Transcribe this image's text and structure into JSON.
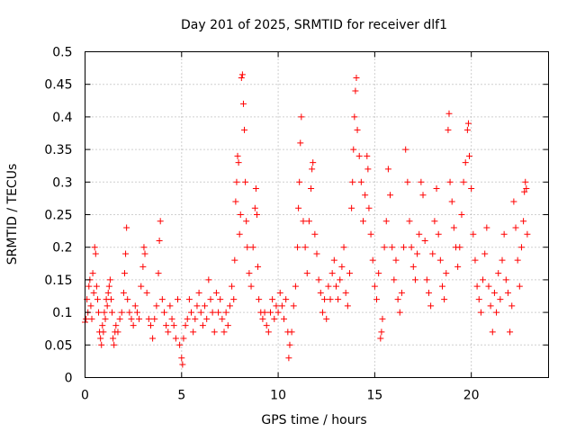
{
  "chart_data": {
    "type": "scatter",
    "title": "Day 201 of 2025, SRMTID for receiver dlf1",
    "xlabel": "GPS time / hours",
    "ylabel": "SRMTID / TECUs",
    "xlim": [
      0,
      24
    ],
    "ylim": [
      0,
      0.5
    ],
    "xticks": [
      0,
      5,
      10,
      15,
      20
    ],
    "yticks": [
      0,
      0.05,
      0.1,
      0.15,
      0.2,
      0.25,
      0.3,
      0.35,
      0.4,
      0.45,
      0.5
    ],
    "ytick_labels": [
      "0",
      "0.05",
      "0.1",
      "0.15",
      "0.2",
      "0.25",
      "0.3",
      "0.35",
      "0.4",
      "0.45",
      "0.5"
    ],
    "xtick_labels": [
      "0",
      "5",
      "10",
      "15",
      "20"
    ],
    "grid": true,
    "marker": "+",
    "color": "#ff0000",
    "series": [
      {
        "name": "SRMTID",
        "points": [
          [
            0.0,
            0.085
          ],
          [
            0.05,
            0.09
          ],
          [
            0.1,
            0.12
          ],
          [
            0.15,
            0.1
          ],
          [
            0.2,
            0.14
          ],
          [
            0.25,
            0.15
          ],
          [
            0.3,
            0.11
          ],
          [
            0.35,
            0.09
          ],
          [
            0.4,
            0.16
          ],
          [
            0.45,
            0.13
          ],
          [
            0.5,
            0.2
          ],
          [
            0.55,
            0.19
          ],
          [
            0.6,
            0.14
          ],
          [
            0.65,
            0.12
          ],
          [
            0.7,
            0.1
          ],
          [
            0.75,
            0.07
          ],
          [
            0.8,
            0.06
          ],
          [
            0.85,
            0.05
          ],
          [
            0.9,
            0.08
          ],
          [
            0.95,
            0.07
          ],
          [
            1.0,
            0.1
          ],
          [
            1.05,
            0.09
          ],
          [
            1.1,
            0.12
          ],
          [
            1.15,
            0.11
          ],
          [
            1.2,
            0.13
          ],
          [
            1.25,
            0.14
          ],
          [
            1.3,
            0.15
          ],
          [
            1.35,
            0.12
          ],
          [
            1.4,
            0.1
          ],
          [
            1.45,
            0.06
          ],
          [
            1.5,
            0.05
          ],
          [
            1.55,
            0.07
          ],
          [
            1.6,
            0.08
          ],
          [
            1.7,
            0.07
          ],
          [
            1.8,
            0.09
          ],
          [
            1.9,
            0.1
          ],
          [
            2.0,
            0.13
          ],
          [
            2.05,
            0.16
          ],
          [
            2.1,
            0.19
          ],
          [
            2.15,
            0.23
          ],
          [
            2.2,
            0.12
          ],
          [
            2.3,
            0.1
          ],
          [
            2.4,
            0.09
          ],
          [
            2.5,
            0.08
          ],
          [
            2.6,
            0.11
          ],
          [
            2.7,
            0.1
          ],
          [
            2.8,
            0.09
          ],
          [
            2.9,
            0.14
          ],
          [
            3.0,
            0.17
          ],
          [
            3.05,
            0.2
          ],
          [
            3.1,
            0.19
          ],
          [
            3.2,
            0.13
          ],
          [
            3.3,
            0.09
          ],
          [
            3.4,
            0.08
          ],
          [
            3.5,
            0.06
          ],
          [
            3.6,
            0.09
          ],
          [
            3.7,
            0.11
          ],
          [
            3.8,
            0.16
          ],
          [
            3.85,
            0.21
          ],
          [
            3.9,
            0.24
          ],
          [
            4.0,
            0.12
          ],
          [
            4.1,
            0.1
          ],
          [
            4.2,
            0.08
          ],
          [
            4.3,
            0.07
          ],
          [
            4.4,
            0.11
          ],
          [
            4.5,
            0.09
          ],
          [
            4.6,
            0.08
          ],
          [
            4.7,
            0.06
          ],
          [
            4.8,
            0.12
          ],
          [
            4.9,
            0.05
          ],
          [
            5.0,
            0.03
          ],
          [
            5.05,
            0.02
          ],
          [
            5.1,
            0.06
          ],
          [
            5.2,
            0.08
          ],
          [
            5.3,
            0.09
          ],
          [
            5.4,
            0.12
          ],
          [
            5.5,
            0.1
          ],
          [
            5.6,
            0.07
          ],
          [
            5.7,
            0.09
          ],
          [
            5.8,
            0.11
          ],
          [
            5.9,
            0.13
          ],
          [
            6.0,
            0.1
          ],
          [
            6.1,
            0.08
          ],
          [
            6.2,
            0.11
          ],
          [
            6.3,
            0.09
          ],
          [
            6.4,
            0.15
          ],
          [
            6.5,
            0.12
          ],
          [
            6.6,
            0.1
          ],
          [
            6.7,
            0.07
          ],
          [
            6.8,
            0.13
          ],
          [
            6.9,
            0.1
          ],
          [
            7.0,
            0.12
          ],
          [
            7.1,
            0.09
          ],
          [
            7.2,
            0.07
          ],
          [
            7.3,
            0.1
          ],
          [
            7.4,
            0.08
          ],
          [
            7.5,
            0.11
          ],
          [
            7.6,
            0.14
          ],
          [
            7.7,
            0.12
          ],
          [
            7.75,
            0.18
          ],
          [
            7.8,
            0.27
          ],
          [
            7.85,
            0.3
          ],
          [
            7.9,
            0.34
          ],
          [
            7.95,
            0.33
          ],
          [
            8.0,
            0.22
          ],
          [
            8.05,
            0.25
          ],
          [
            8.1,
            0.46
          ],
          [
            8.15,
            0.465
          ],
          [
            8.2,
            0.42
          ],
          [
            8.25,
            0.38
          ],
          [
            8.3,
            0.3
          ],
          [
            8.35,
            0.24
          ],
          [
            8.4,
            0.2
          ],
          [
            8.5,
            0.16
          ],
          [
            8.6,
            0.14
          ],
          [
            8.7,
            0.2
          ],
          [
            8.8,
            0.26
          ],
          [
            8.85,
            0.29
          ],
          [
            8.9,
            0.25
          ],
          [
            8.95,
            0.17
          ],
          [
            9.0,
            0.12
          ],
          [
            9.1,
            0.1
          ],
          [
            9.2,
            0.09
          ],
          [
            9.3,
            0.1
          ],
          [
            9.4,
            0.08
          ],
          [
            9.5,
            0.07
          ],
          [
            9.6,
            0.1
          ],
          [
            9.7,
            0.12
          ],
          [
            9.8,
            0.09
          ],
          [
            9.9,
            0.11
          ],
          [
            10.0,
            0.1
          ],
          [
            10.1,
            0.13
          ],
          [
            10.2,
            0.11
          ],
          [
            10.3,
            0.09
          ],
          [
            10.4,
            0.12
          ],
          [
            10.5,
            0.07
          ],
          [
            10.55,
            0.03
          ],
          [
            10.6,
            0.05
          ],
          [
            10.7,
            0.07
          ],
          [
            10.8,
            0.11
          ],
          [
            10.9,
            0.14
          ],
          [
            11.0,
            0.2
          ],
          [
            11.05,
            0.26
          ],
          [
            11.1,
            0.3
          ],
          [
            11.15,
            0.36
          ],
          [
            11.2,
            0.4
          ],
          [
            11.3,
            0.24
          ],
          [
            11.4,
            0.2
          ],
          [
            11.5,
            0.16
          ],
          [
            11.6,
            0.24
          ],
          [
            11.7,
            0.29
          ],
          [
            11.75,
            0.32
          ],
          [
            11.8,
            0.33
          ],
          [
            11.9,
            0.22
          ],
          [
            12.0,
            0.19
          ],
          [
            12.1,
            0.15
          ],
          [
            12.2,
            0.13
          ],
          [
            12.3,
            0.1
          ],
          [
            12.4,
            0.12
          ],
          [
            12.5,
            0.09
          ],
          [
            12.6,
            0.14
          ],
          [
            12.7,
            0.12
          ],
          [
            12.8,
            0.16
          ],
          [
            12.9,
            0.18
          ],
          [
            13.0,
            0.14
          ],
          [
            13.1,
            0.12
          ],
          [
            13.2,
            0.15
          ],
          [
            13.3,
            0.17
          ],
          [
            13.4,
            0.2
          ],
          [
            13.5,
            0.13
          ],
          [
            13.6,
            0.11
          ],
          [
            13.7,
            0.16
          ],
          [
            13.8,
            0.26
          ],
          [
            13.85,
            0.3
          ],
          [
            13.9,
            0.35
          ],
          [
            13.95,
            0.4
          ],
          [
            14.0,
            0.44
          ],
          [
            14.05,
            0.46
          ],
          [
            14.1,
            0.38
          ],
          [
            14.2,
            0.34
          ],
          [
            14.3,
            0.3
          ],
          [
            14.4,
            0.24
          ],
          [
            14.5,
            0.28
          ],
          [
            14.6,
            0.34
          ],
          [
            14.65,
            0.32
          ],
          [
            14.7,
            0.26
          ],
          [
            14.8,
            0.22
          ],
          [
            14.9,
            0.18
          ],
          [
            15.0,
            0.14
          ],
          [
            15.1,
            0.12
          ],
          [
            15.2,
            0.16
          ],
          [
            15.3,
            0.06
          ],
          [
            15.35,
            0.07
          ],
          [
            15.4,
            0.09
          ],
          [
            15.5,
            0.2
          ],
          [
            15.6,
            0.24
          ],
          [
            15.7,
            0.32
          ],
          [
            15.8,
            0.28
          ],
          [
            15.9,
            0.2
          ],
          [
            16.0,
            0.15
          ],
          [
            16.1,
            0.18
          ],
          [
            16.2,
            0.12
          ],
          [
            16.3,
            0.1
          ],
          [
            16.4,
            0.13
          ],
          [
            16.5,
            0.2
          ],
          [
            16.6,
            0.35
          ],
          [
            16.7,
            0.3
          ],
          [
            16.8,
            0.24
          ],
          [
            16.9,
            0.2
          ],
          [
            17.0,
            0.17
          ],
          [
            17.1,
            0.15
          ],
          [
            17.2,
            0.19
          ],
          [
            17.3,
            0.22
          ],
          [
            17.4,
            0.3
          ],
          [
            17.5,
            0.28
          ],
          [
            17.6,
            0.21
          ],
          [
            17.7,
            0.15
          ],
          [
            17.8,
            0.13
          ],
          [
            17.9,
            0.11
          ],
          [
            18.0,
            0.19
          ],
          [
            18.1,
            0.24
          ],
          [
            18.2,
            0.29
          ],
          [
            18.3,
            0.22
          ],
          [
            18.4,
            0.18
          ],
          [
            18.5,
            0.14
          ],
          [
            18.6,
            0.12
          ],
          [
            18.7,
            0.16
          ],
          [
            18.8,
            0.38
          ],
          [
            18.85,
            0.405
          ],
          [
            18.9,
            0.3
          ],
          [
            19.0,
            0.27
          ],
          [
            19.1,
            0.23
          ],
          [
            19.2,
            0.2
          ],
          [
            19.3,
            0.17
          ],
          [
            19.4,
            0.2
          ],
          [
            19.5,
            0.25
          ],
          [
            19.6,
            0.3
          ],
          [
            19.7,
            0.33
          ],
          [
            19.8,
            0.38
          ],
          [
            19.85,
            0.39
          ],
          [
            19.9,
            0.34
          ],
          [
            20.0,
            0.29
          ],
          [
            20.1,
            0.22
          ],
          [
            20.2,
            0.18
          ],
          [
            20.3,
            0.14
          ],
          [
            20.4,
            0.12
          ],
          [
            20.5,
            0.1
          ],
          [
            20.6,
            0.15
          ],
          [
            20.7,
            0.19
          ],
          [
            20.8,
            0.23
          ],
          [
            20.9,
            0.14
          ],
          [
            21.0,
            0.11
          ],
          [
            21.1,
            0.07
          ],
          [
            21.2,
            0.13
          ],
          [
            21.3,
            0.1
          ],
          [
            21.4,
            0.16
          ],
          [
            21.5,
            0.12
          ],
          [
            21.6,
            0.18
          ],
          [
            21.7,
            0.22
          ],
          [
            21.8,
            0.15
          ],
          [
            21.9,
            0.13
          ],
          [
            22.0,
            0.07
          ],
          [
            22.1,
            0.11
          ],
          [
            22.2,
            0.27
          ],
          [
            22.3,
            0.23
          ],
          [
            22.4,
            0.18
          ],
          [
            22.5,
            0.14
          ],
          [
            22.6,
            0.2
          ],
          [
            22.7,
            0.24
          ],
          [
            22.75,
            0.285
          ],
          [
            22.8,
            0.3
          ],
          [
            22.85,
            0.29
          ],
          [
            22.9,
            0.22
          ]
        ]
      }
    ]
  }
}
